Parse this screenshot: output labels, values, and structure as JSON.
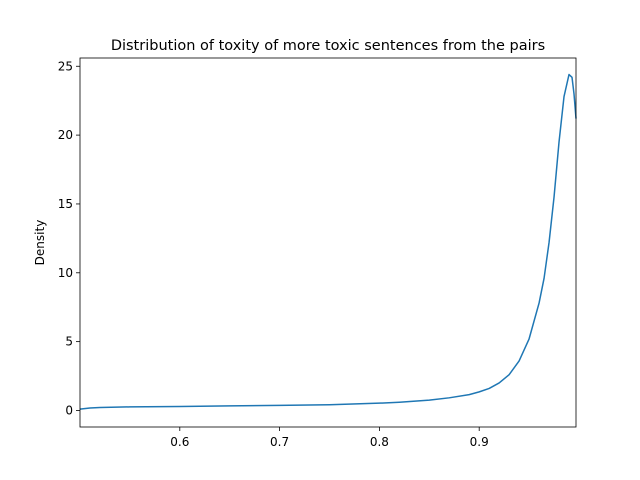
{
  "chart_data": {
    "type": "line",
    "title": "Distribution of toxity of more toxic sentences from the pairs",
    "xlabel": "",
    "ylabel": "Density",
    "xlim": [
      0.5,
      0.997
    ],
    "ylim": [
      -1.2,
      25.6
    ],
    "xticks": [
      0.6,
      0.7,
      0.8,
      0.9
    ],
    "xtick_labels": [
      "0.6",
      "0.7",
      "0.8",
      "0.9"
    ],
    "yticks": [
      0,
      5,
      10,
      15,
      20,
      25
    ],
    "ytick_labels": [
      "0",
      "5",
      "10",
      "15",
      "20",
      "25"
    ],
    "grid": false,
    "line_color": "#1f77b4",
    "series": [
      {
        "x": [
          0.5,
          0.51,
          0.52,
          0.55,
          0.6,
          0.65,
          0.7,
          0.75,
          0.8,
          0.82,
          0.85,
          0.87,
          0.89,
          0.9,
          0.91,
          0.92,
          0.93,
          0.94,
          0.95,
          0.96,
          0.965,
          0.97,
          0.975,
          0.98,
          0.985,
          0.99,
          0.993,
          0.995,
          0.997
        ],
        "y": [
          0.1,
          0.18,
          0.22,
          0.26,
          0.29,
          0.33,
          0.37,
          0.42,
          0.53,
          0.6,
          0.75,
          0.92,
          1.15,
          1.35,
          1.6,
          2.0,
          2.6,
          3.6,
          5.2,
          7.8,
          9.6,
          12.2,
          15.5,
          19.5,
          22.8,
          24.4,
          24.2,
          23.0,
          21.2
        ]
      }
    ]
  }
}
